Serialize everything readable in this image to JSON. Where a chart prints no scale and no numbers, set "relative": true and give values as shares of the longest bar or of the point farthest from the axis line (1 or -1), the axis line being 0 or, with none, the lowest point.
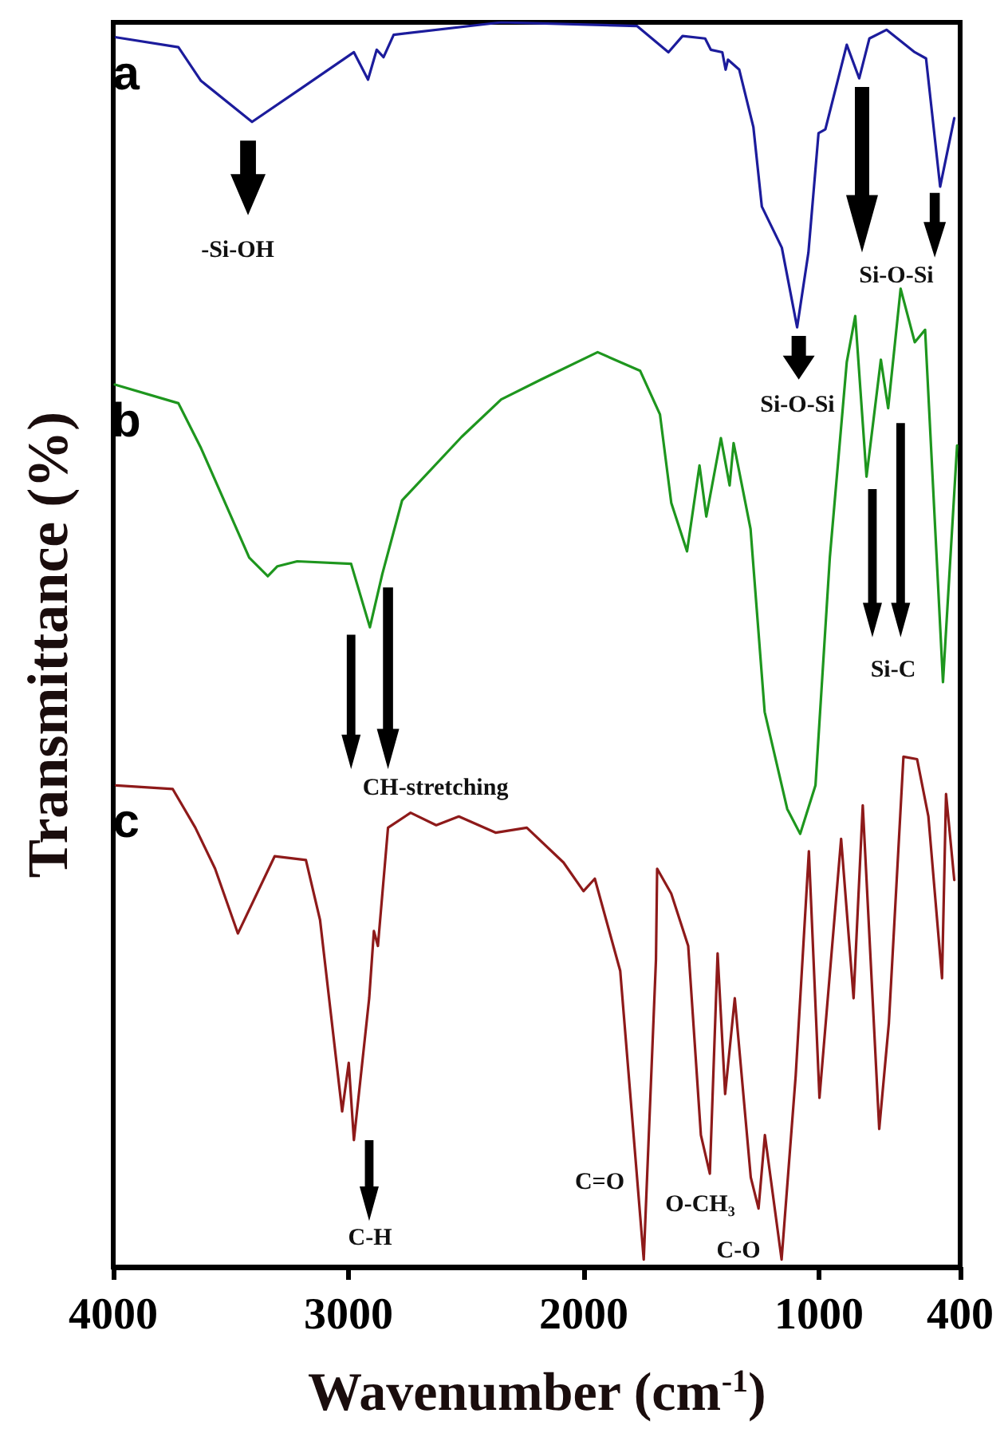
{
  "chart_data": {
    "type": "line",
    "relative": true,
    "xlabel": "Wavenumber (cm$^{-1}$)",
    "ylabel": "Transmittance (%)",
    "xlim": [
      4000,
      400
    ],
    "xticks": [
      4000,
      3000,
      2000,
      1000,
      400
    ],
    "grid": false,
    "legend": false,
    "marker": "none",
    "line_style": "solid",
    "series": [
      {
        "name": "a",
        "color": "#1c1c9c",
        "x": [
          3988,
          3723,
          3627,
          3410,
          3193,
          2977,
          2917,
          2880,
          2851,
          2808,
          2351,
          1773,
          1640,
          1580,
          1484,
          1460,
          1411,
          1397,
          1387,
          1339,
          1279,
          1243,
          1158,
          1093,
          1045,
          1002,
          973,
          882,
          829,
          786,
          713,
          593,
          545,
          485,
          425
        ],
        "values": [
          0.988,
          0.98,
          0.953,
          0.92,
          0.948,
          0.976,
          0.954,
          0.978,
          0.972,
          0.99,
          1.0,
          0.997,
          0.976,
          0.989,
          0.987,
          0.978,
          0.976,
          0.962,
          0.97,
          0.962,
          0.916,
          0.852,
          0.819,
          0.755,
          0.815,
          0.911,
          0.914,
          0.982,
          0.955,
          0.987,
          0.994,
          0.976,
          0.971,
          0.868,
          0.923
        ]
      },
      {
        "name": "b",
        "color": "#1e961e",
        "x": [
          3993,
          3723,
          3627,
          3422,
          3343,
          3302,
          3218,
          2989,
          2909,
          2856,
          2772,
          2519,
          2351,
          2182,
          1941,
          1760,
          1676,
          1628,
          1561,
          1508,
          1479,
          1417,
          1380,
          1363,
          1291,
          1231,
          1135,
          1080,
          1015,
          954,
          882,
          846,
          798,
          737,
          706,
          653,
          593,
          549,
          473,
          413
        ],
        "values": [
          0.709,
          0.694,
          0.658,
          0.57,
          0.555,
          0.563,
          0.567,
          0.565,
          0.514,
          0.557,
          0.616,
          0.667,
          0.697,
          0.713,
          0.735,
          0.72,
          0.685,
          0.614,
          0.575,
          0.644,
          0.603,
          0.666,
          0.628,
          0.662,
          0.593,
          0.446,
          0.368,
          0.348,
          0.387,
          0.57,
          0.727,
          0.764,
          0.635,
          0.729,
          0.69,
          0.786,
          0.743,
          0.753,
          0.47,
          0.66
        ]
      },
      {
        "name": "c",
        "color": "#8e1a1a",
        "x": [
          3988,
          3747,
          3651,
          3567,
          3470,
          3314,
          3181,
          3121,
          3027,
          2999,
          2977,
          2912,
          2892,
          2875,
          2832,
          2736,
          2627,
          2531,
          2375,
          2242,
          2086,
          2001,
          1953,
          1845,
          1745,
          1693,
          1688,
          1628,
          1556,
          1502,
          1464,
          1431,
          1399,
          1358,
          1290,
          1257,
          1230,
          1159,
          1099,
          1043,
          998,
          906,
          853,
          814,
          744,
          703,
          641,
          583,
          535,
          477,
          460,
          425
        ],
        "values": [
          0.387,
          0.384,
          0.353,
          0.32,
          0.268,
          0.33,
          0.327,
          0.279,
          0.125,
          0.164,
          0.102,
          0.216,
          0.27,
          0.258,
          0.353,
          0.365,
          0.355,
          0.362,
          0.349,
          0.353,
          0.325,
          0.302,
          0.312,
          0.238,
          0.006,
          0.247,
          0.32,
          0.3,
          0.258,
          0.106,
          0.075,
          0.252,
          0.139,
          0.216,
          0.072,
          0.047,
          0.106,
          0.006,
          0.154,
          0.334,
          0.136,
          0.344,
          0.216,
          0.371,
          0.111,
          0.196,
          0.41,
          0.408,
          0.362,
          0.232,
          0.38,
          0.311
        ]
      }
    ],
    "annotations": [
      "-Si-OH",
      "Si-O-Si",
      "Si-O-Si",
      "CH-stretching",
      "Si-C",
      "C-H",
      "C=O",
      "O-CH₃",
      "C-O"
    ]
  }
}
